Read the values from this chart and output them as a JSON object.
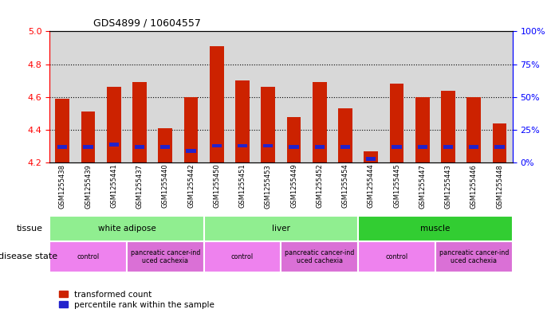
{
  "title": "GDS4899 / 10604557",
  "samples": [
    "GSM1255438",
    "GSM1255439",
    "GSM1255441",
    "GSM1255437",
    "GSM1255440",
    "GSM1255442",
    "GSM1255450",
    "GSM1255451",
    "GSM1255453",
    "GSM1255449",
    "GSM1255452",
    "GSM1255454",
    "GSM1255444",
    "GSM1255445",
    "GSM1255447",
    "GSM1255443",
    "GSM1255446",
    "GSM1255448"
  ],
  "transformed_count": [
    4.59,
    4.51,
    4.66,
    4.69,
    4.41,
    4.6,
    4.91,
    4.7,
    4.66,
    4.48,
    4.69,
    4.53,
    4.27,
    4.68,
    4.6,
    4.64,
    4.6,
    4.44
  ],
  "percentile_rank": [
    12,
    12,
    14,
    12,
    12,
    9,
    13,
    13,
    13,
    12,
    12,
    12,
    3,
    12,
    12,
    12,
    12,
    12
  ],
  "ylim_left": [
    4.2,
    5.0
  ],
  "ylim_right": [
    0,
    100
  ],
  "yticks_left": [
    4.2,
    4.4,
    4.6,
    4.8,
    5.0
  ],
  "yticks_right": [
    0,
    25,
    50,
    75,
    100
  ],
  "bar_bottom": 4.2,
  "tissue_groups": [
    {
      "label": "white adipose",
      "start": 0,
      "end": 6,
      "color": "#90ee90"
    },
    {
      "label": "liver",
      "start": 6,
      "end": 12,
      "color": "#90ee90"
    },
    {
      "label": "muscle",
      "start": 12,
      "end": 18,
      "color": "#32cd32"
    }
  ],
  "disease_groups": [
    {
      "label": "control",
      "start": 0,
      "end": 3,
      "color": "#ee82ee"
    },
    {
      "label": "pancreatic cancer-ind\nuced cachexia",
      "start": 3,
      "end": 6,
      "color": "#da70d6"
    },
    {
      "label": "control",
      "start": 6,
      "end": 9,
      "color": "#ee82ee"
    },
    {
      "label": "pancreatic cancer-ind\nuced cachexia",
      "start": 9,
      "end": 12,
      "color": "#da70d6"
    },
    {
      "label": "control",
      "start": 12,
      "end": 15,
      "color": "#ee82ee"
    },
    {
      "label": "pancreatic cancer-ind\nuced cachexia",
      "start": 15,
      "end": 18,
      "color": "#da70d6"
    }
  ],
  "bar_color_red": "#cc2200",
  "bar_color_blue": "#2222cc",
  "bar_width": 0.55,
  "blue_bar_width": 0.38,
  "legend_labels": [
    "transformed count",
    "percentile rank within the sample"
  ],
  "dotted_line_color": "black",
  "right_axis_color": "blue",
  "left_axis_color": "red",
  "background_color": "white",
  "plot_bg_color": "#d8d8d8"
}
